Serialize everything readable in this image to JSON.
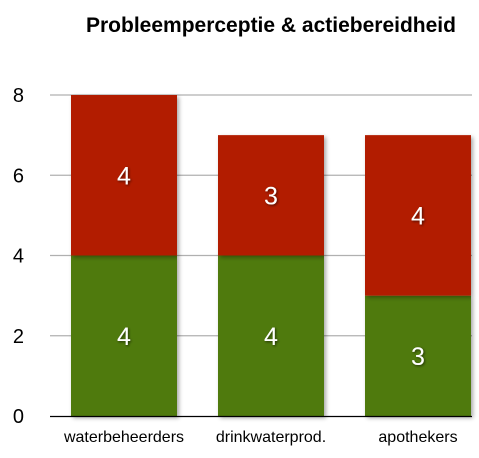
{
  "chart_data": {
    "type": "bar",
    "stacked": true,
    "title": "Probleemperceptie & actiebereidheid",
    "xlabel": "",
    "ylabel": "",
    "categories": [
      "waterbeheerders",
      "drinkwaterprod.",
      "apothekers"
    ],
    "series": [
      {
        "values": [
          4,
          4,
          3
        ],
        "color": "#4f7a0b"
      },
      {
        "values": [
          4,
          3,
          4
        ],
        "color": "#b21e00"
      }
    ],
    "ylim": [
      0,
      8
    ],
    "yticks": [
      "0",
      "2",
      "4",
      "6",
      "8"
    ],
    "grid": true,
    "legend": "none"
  }
}
